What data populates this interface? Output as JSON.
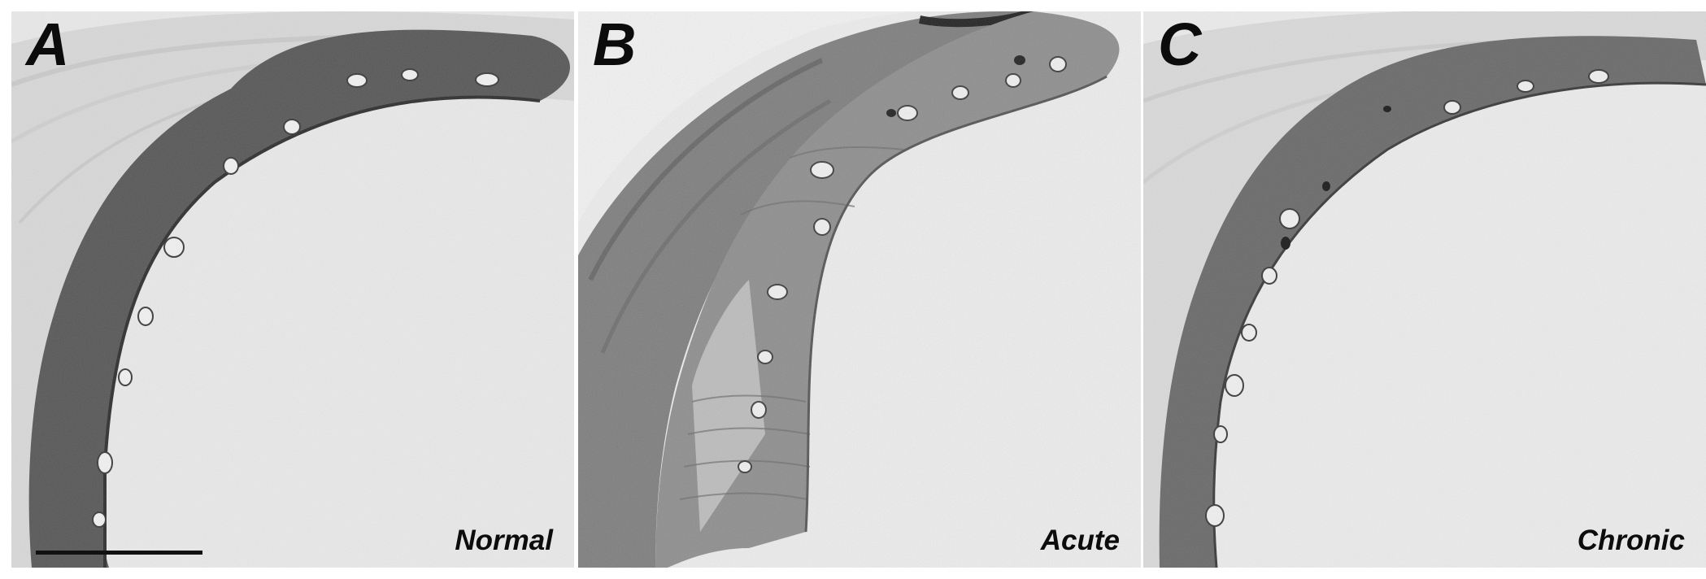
{
  "panels": [
    {
      "letter": "A",
      "caption": "Normal"
    },
    {
      "letter": "B",
      "caption": "Acute"
    },
    {
      "letter": "C",
      "caption": "Chronic"
    }
  ],
  "colors": {
    "background": "#ededed",
    "connective_tissue": "#d6d6d6",
    "normal_epithelium": "#575757",
    "acute_epithelium": "#8a8a8a",
    "chronic_epithelium": "#6a6a6a",
    "label_color": "#0c0c0c"
  }
}
